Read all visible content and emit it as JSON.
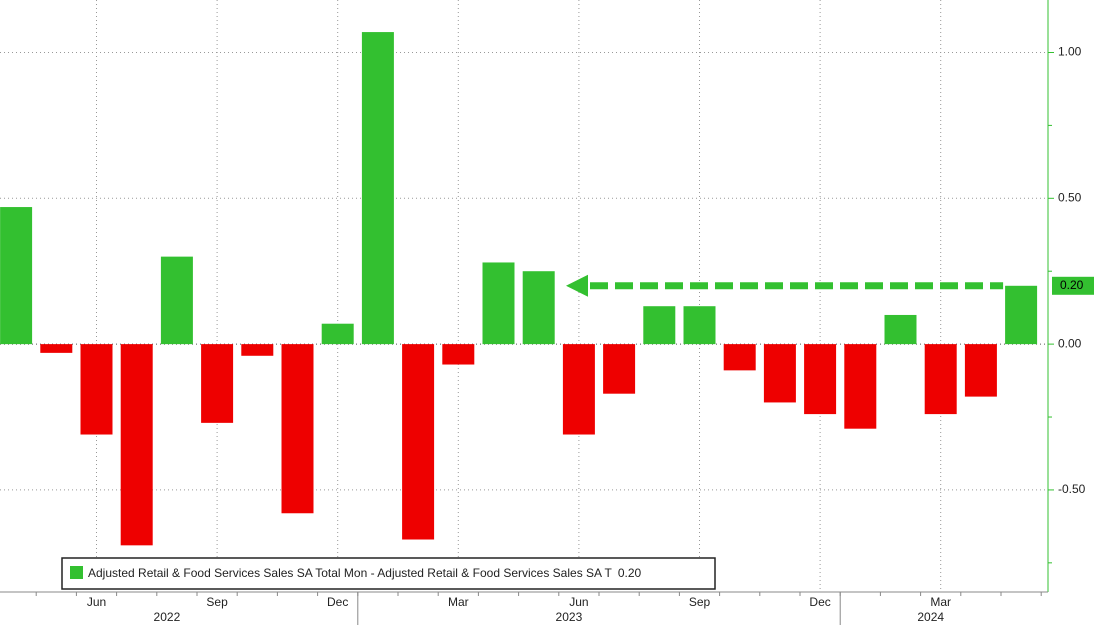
{
  "chart_data": {
    "type": "bar",
    "categories": [
      null,
      null,
      "Jun",
      null,
      null,
      "Sep",
      null,
      null,
      "Dec",
      null,
      null,
      "Mar",
      null,
      null,
      "Jun",
      null,
      null,
      "Sep",
      null,
      null,
      "Dec",
      null,
      null,
      "Mar",
      null,
      null
    ],
    "year_labels": [
      null,
      null,
      null,
      null,
      "2022",
      null,
      null,
      null,
      null,
      null,
      null,
      null,
      null,
      null,
      "2023",
      null,
      null,
      null,
      null,
      null,
      null,
      null,
      null,
      "2024",
      null,
      null
    ],
    "series": [
      {
        "name": "Adjusted Retail & Food Services Sales SA Total Mon - Adjusted Retail & Food Services Sales SA T",
        "color": "#33c030",
        "negative_color": "#ee0000",
        "values": [
          0.47,
          -0.03,
          -0.31,
          -0.69,
          0.3,
          -0.27,
          -0.04,
          -0.58,
          0.07,
          1.07,
          -0.67,
          -0.07,
          0.28,
          0.25,
          -0.31,
          -0.17,
          0.13,
          0.13,
          -0.09,
          -0.2,
          -0.24,
          -0.29,
          0.1,
          -0.24,
          -0.18,
          0.2
        ],
        "value_labels": [
          null,
          null,
          null,
          null,
          null,
          null,
          null,
          null,
          null,
          null,
          null,
          null,
          null,
          null,
          null,
          null,
          null,
          null,
          null,
          null,
          null,
          null,
          null,
          null,
          null,
          "0.20"
        ]
      }
    ],
    "ylim": [
      -0.85,
      1.18
    ],
    "yticks": [
      {
        "value": -0.5,
        "label": "-0.50"
      },
      {
        "value": 0,
        "label": "0.00"
      },
      {
        "value": 0.5,
        "label": "0.50"
      },
      {
        "value": 1,
        "label": "1.00"
      }
    ],
    "minor_yticks": [
      -0.75,
      -0.25,
      0.25,
      0.75
    ],
    "grid": true
  }
}
